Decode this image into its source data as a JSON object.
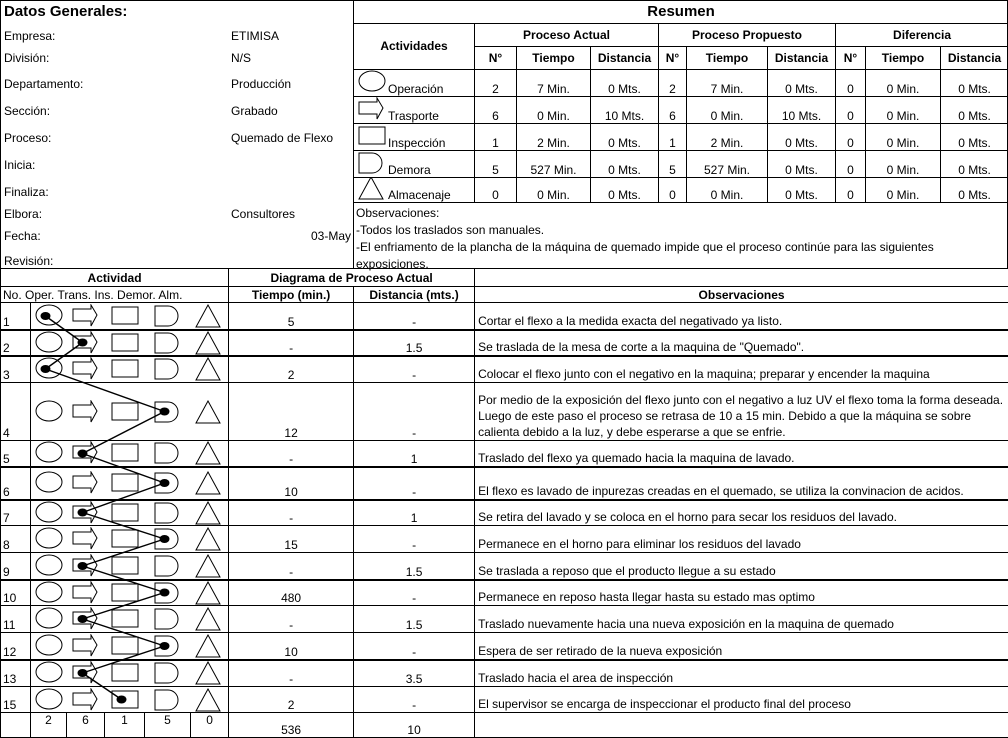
{
  "general": {
    "title": "Datos Generales:",
    "fields": [
      {
        "label": "Empresa:",
        "value": "ETIMISA"
      },
      {
        "label": "División:",
        "value": "N/S"
      },
      {
        "label": "Departamento:",
        "value": "Producción"
      },
      {
        "label": "Sección:",
        "value": "Grabado"
      },
      {
        "label": "Proceso:",
        "value": "Quemado de Flexo"
      },
      {
        "label": "Inicia:",
        "value": ""
      },
      {
        "label": "Finaliza:",
        "value": ""
      },
      {
        "label": "Elbora:",
        "value": "Consultores"
      },
      {
        "label": "Fecha:",
        "value": "03-May"
      },
      {
        "label": "Revisión:",
        "value": ""
      }
    ]
  },
  "summary": {
    "title": "Resumen",
    "activities_header": "Actividades",
    "groups": [
      "Proceso Actual",
      "Proceso Propuesto",
      "Diferencia"
    ],
    "subheaders": [
      "N°",
      "Tiempo",
      "Distancia"
    ],
    "rows": [
      {
        "icon": "operation-circle-icon",
        "label": "Operación",
        "values": [
          "2",
          "7 Min.",
          "0 Mts.",
          "2",
          "7 Min.",
          "0 Mts.",
          "0",
          "0 Min.",
          "0 Mts."
        ]
      },
      {
        "icon": "transport-arrow-icon",
        "label": "Trasporte",
        "values": [
          "6",
          "0 Min.",
          "10 Mts.",
          "6",
          "0 Min.",
          "10 Mts.",
          "0",
          "0 Min.",
          "0 Mts."
        ]
      },
      {
        "icon": "inspection-square-icon",
        "label": "Inspección",
        "values": [
          "1",
          "2 Min.",
          "0 Mts.",
          "1",
          "2 Min.",
          "0 Mts.",
          "0",
          "0 Min.",
          "0 Mts."
        ]
      },
      {
        "icon": "delay-d-icon",
        "label": "Demora",
        "values": [
          "5",
          "527 Min.",
          "0 Mts.",
          "5",
          "527 Min.",
          "0 Mts.",
          "0",
          "0 Min.",
          "0 Mts."
        ]
      },
      {
        "icon": "storage-triangle-icon",
        "label": "Almacenaje",
        "values": [
          "0",
          "0 Min.",
          "0 Mts.",
          "0",
          "0 Min.",
          "0 Mts.",
          "0",
          "0 Min.",
          "0 Mts."
        ]
      }
    ],
    "observations": [
      "Observaciones:",
      "-Todos los traslados son manuales.",
      "-El enfriamento de la plancha de la máquina de quemado impide que el proceso continúe para las siguientes exposiciones."
    ]
  },
  "diagram": {
    "activity_header": "Actividad",
    "diagram_header": "Diagrama de Proceso Actual",
    "col_no": "No. Oper. Trans. Ins.  Demor.  Alm.",
    "col_time": "Tiempo (min.)",
    "col_dist": "Distancia (mts.)",
    "col_obs": "Observaciones",
    "rows": [
      {
        "no": "1",
        "type": "oper",
        "time": "5",
        "dist": "-",
        "obs": "Cortar el flexo a la medida exacta del negativado ya listo."
      },
      {
        "no": "2",
        "type": "trans",
        "time": "-",
        "dist": "1.5",
        "obs": "Se traslada de la mesa de corte a la maquina de \"Quemado\"."
      },
      {
        "no": "3",
        "type": "oper",
        "time": "2",
        "dist": "-",
        "obs": "Colocar el flexo junto con el negativo en la maquina; preparar y encender la maquina"
      },
      {
        "no": "4",
        "type": "demor",
        "time": "12",
        "dist": "-",
        "obs": "Por medio de la exposición del flexo junto con el negativo a luz UV el flexo toma la forma deseada. Luego de este paso el proceso se retrasa de 10 a 15 min. Debido a que la máquina se sobre calienta debido a la luz, y debe esperarse a que se enfrie."
      },
      {
        "no": "5",
        "type": "trans",
        "time": "-",
        "dist": "1",
        "obs": "Traslado del flexo ya quemado hacia la maquina de lavado."
      },
      {
        "no": "6",
        "type": "demor",
        "time": "10",
        "dist": "-",
        "obs": "El flexo es lavado de inpurezas creadas en el quemado, se utiliza la convinacion de acidos."
      },
      {
        "no": "7",
        "type": "trans",
        "time": "-",
        "dist": "1",
        "obs": "Se retira del lavado y se coloca en el horno para secar los residuos del lavado."
      },
      {
        "no": "8",
        "type": "demor",
        "time": "15",
        "dist": "-",
        "obs": "Permanece en el horno para eliminar los residuos del lavado"
      },
      {
        "no": "9",
        "type": "trans",
        "time": "-",
        "dist": "1.5",
        "obs": "Se traslada a reposo que el producto llegue a su estado"
      },
      {
        "no": "10",
        "type": "demor",
        "time": "480",
        "dist": "-",
        "obs": "Permanece en reposo hasta llegar hasta su estado mas optimo"
      },
      {
        "no": "11",
        "type": "trans",
        "time": "-",
        "dist": "1.5",
        "obs": "Traslado nuevamente hacia una nueva exposición en la maquina de quemado"
      },
      {
        "no": "12",
        "type": "demor",
        "time": "10",
        "dist": "-",
        "obs": "Espera de ser retirado de la nueva exposición"
      },
      {
        "no": "13",
        "type": "trans",
        "time": "-",
        "dist": "3.5",
        "obs": "Traslado hacia el area de inspección"
      },
      {
        "no": "15",
        "type": "ins",
        "time": "2",
        "dist": "-",
        "obs": "El supervisor se encarga de inspeccionar el producto final del proceso"
      }
    ],
    "totals": {
      "oper": "2",
      "trans": "6",
      "ins": "1",
      "demor": "5",
      "alm": "0",
      "time": "536",
      "dist": "10"
    }
  }
}
